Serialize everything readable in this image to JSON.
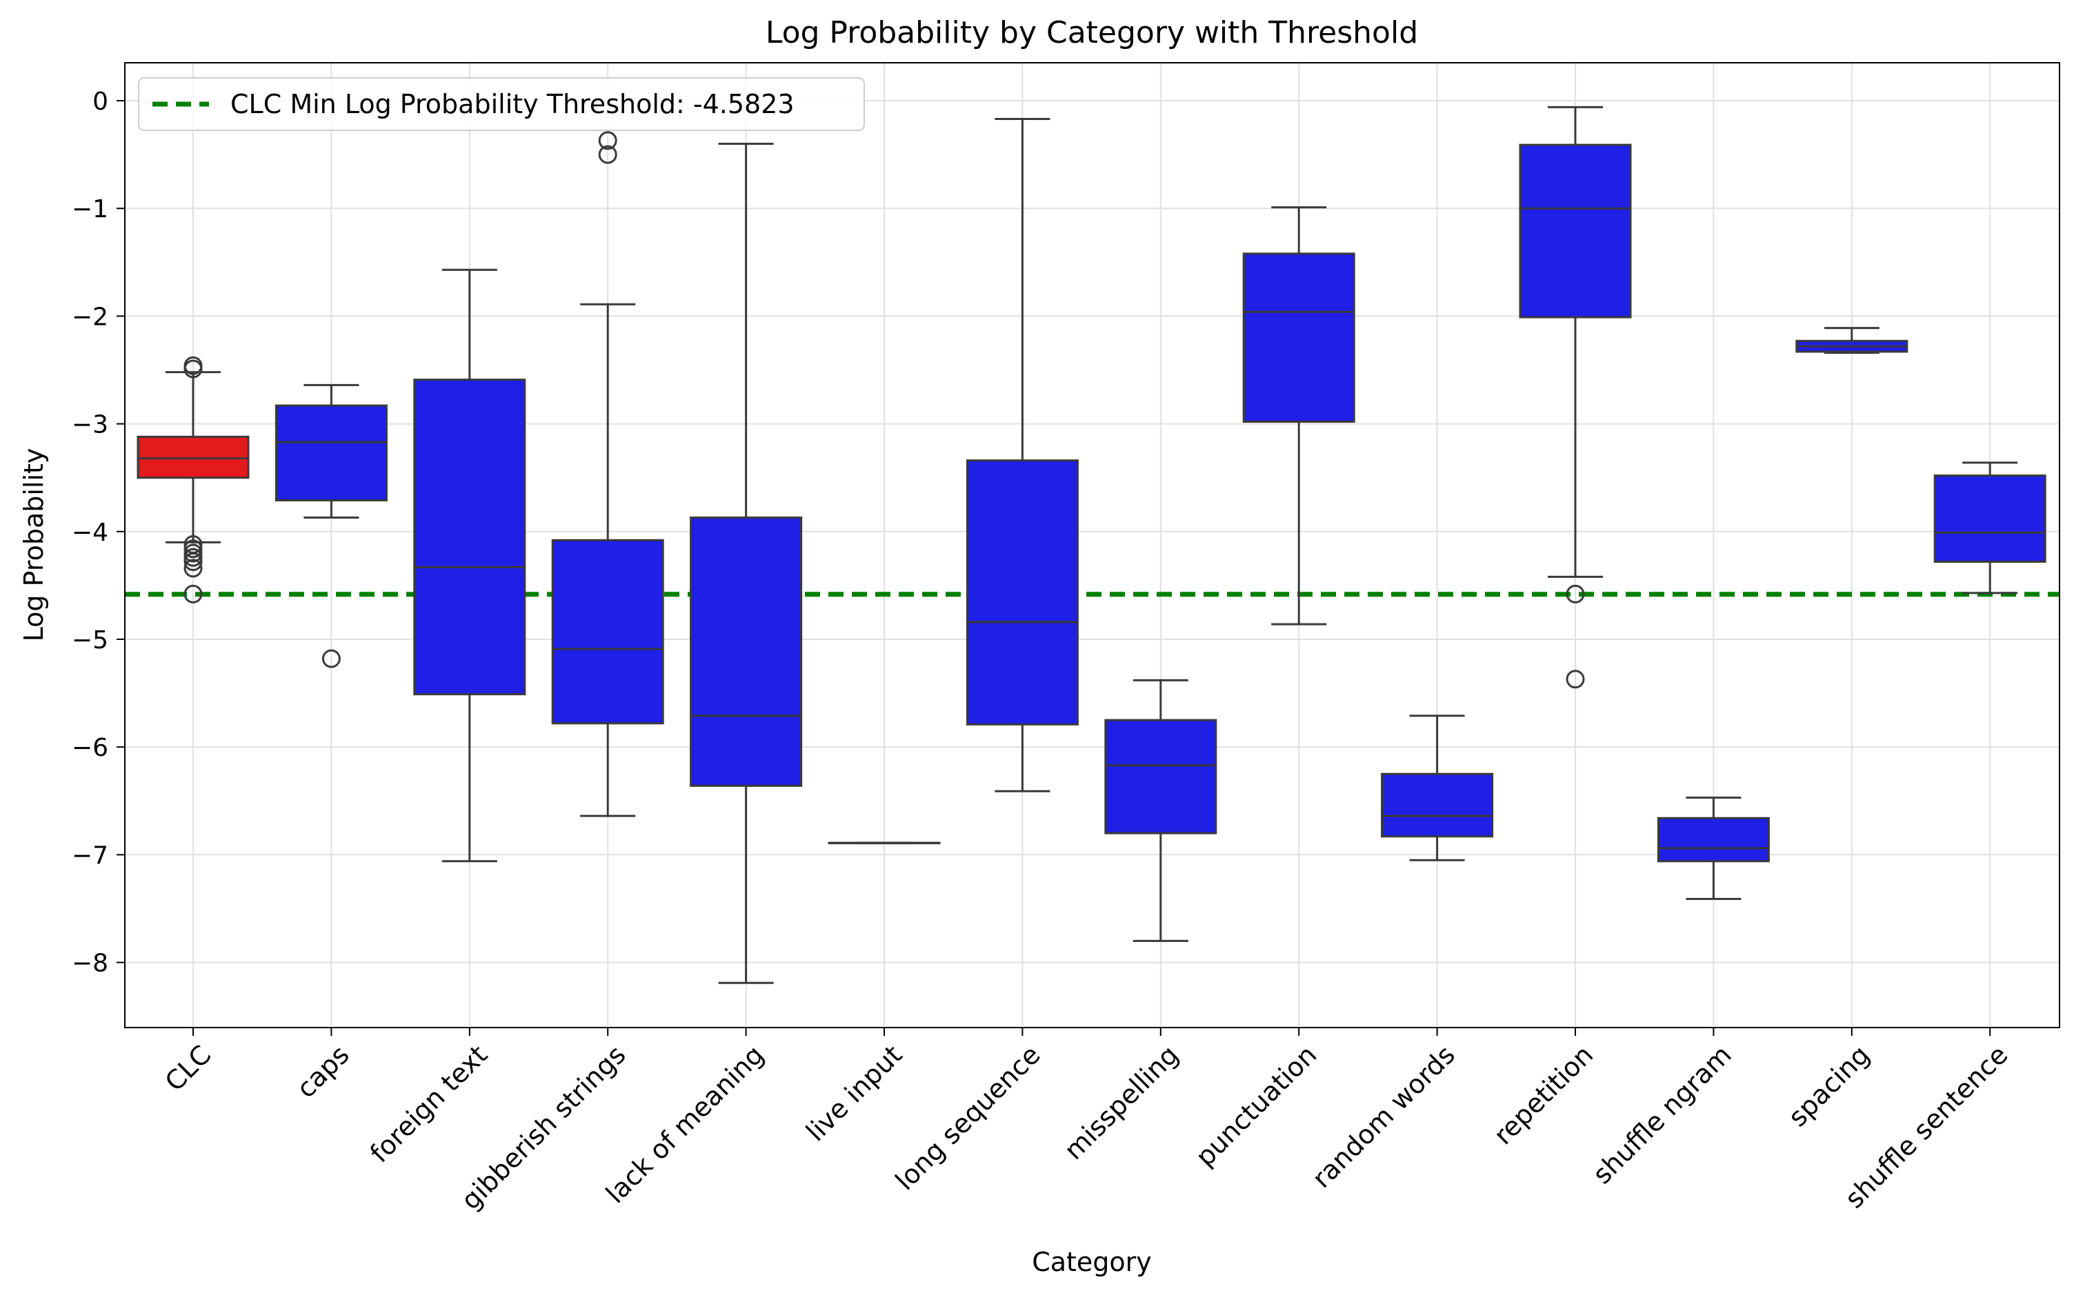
{
  "chart_data": {
    "type": "box",
    "title": "Log Probability by Category with Threshold",
    "xlabel": "Category",
    "ylabel": "Log Probability",
    "ylim": [
      -8.6,
      0.35
    ],
    "yticks": [
      0,
      -1,
      -2,
      -3,
      -4,
      -5,
      -6,
      -7,
      -8
    ],
    "ytick_labels": [
      "0",
      "−1",
      "−2",
      "−3",
      "−4",
      "−5",
      "−6",
      "−7",
      "−8"
    ],
    "grid": true,
    "legend_position": "top-left",
    "threshold": {
      "label": "CLC Min Log Probability Threshold: -4.5823",
      "value": -4.5823,
      "color": "#008000",
      "style": "dashed"
    },
    "colors": {
      "CLC": "#e41a1c",
      "other": "#1f1fe6",
      "whisker": "#3a3a3a",
      "grid": "#e0e0e0"
    },
    "categories": [
      "CLC",
      "caps",
      "foreign text",
      "gibberish strings",
      "lack of meaning",
      "live input",
      "long sequence",
      "misspelling",
      "punctuation",
      "random words",
      "repetition",
      "shuffle ngram",
      "spacing",
      "shuffle sentence"
    ],
    "boxes": [
      {
        "category": "CLC",
        "whislo": -4.1,
        "q1": -3.5,
        "med": -3.32,
        "q3": -3.12,
        "whishi": -2.52,
        "fliers": [
          -2.46,
          -2.49,
          -4.12,
          -4.16,
          -4.2,
          -4.24,
          -4.28,
          -4.34,
          -4.58
        ]
      },
      {
        "category": "caps",
        "whislo": -3.87,
        "q1": -3.71,
        "med": -3.17,
        "q3": -2.83,
        "whishi": -2.64,
        "fliers": [
          -5.18
        ]
      },
      {
        "category": "foreign text",
        "whislo": -7.06,
        "q1": -5.51,
        "med": -4.33,
        "q3": -2.59,
        "whishi": -1.57,
        "fliers": []
      },
      {
        "category": "gibberish strings",
        "whislo": -6.64,
        "q1": -5.78,
        "med": -5.09,
        "q3": -4.08,
        "whishi": -1.89,
        "fliers": [
          -0.37,
          -0.5
        ]
      },
      {
        "category": "lack of meaning",
        "whislo": -8.19,
        "q1": -6.36,
        "med": -5.71,
        "q3": -3.87,
        "whishi": -0.4,
        "fliers": []
      },
      {
        "category": "live input",
        "whislo": -6.89,
        "q1": -6.89,
        "med": -6.89,
        "q3": -6.89,
        "whishi": -6.89,
        "fliers": []
      },
      {
        "category": "long sequence",
        "whislo": -6.41,
        "q1": -5.79,
        "med": -4.84,
        "q3": -3.34,
        "whishi": -0.17,
        "fliers": []
      },
      {
        "category": "misspelling",
        "whislo": -7.8,
        "q1": -6.8,
        "med": -6.17,
        "q3": -5.75,
        "whishi": -5.38,
        "fliers": []
      },
      {
        "category": "punctuation",
        "whislo": -4.86,
        "q1": -2.98,
        "med": -1.96,
        "q3": -1.42,
        "whishi": -0.99,
        "fliers": []
      },
      {
        "category": "random words",
        "whislo": -7.05,
        "q1": -6.83,
        "med": -6.64,
        "q3": -6.25,
        "whishi": -5.71,
        "fliers": []
      },
      {
        "category": "repetition",
        "whislo": -4.42,
        "q1": -2.01,
        "med": -1.0,
        "q3": -0.41,
        "whishi": -0.06,
        "fliers": [
          -4.58,
          -5.37
        ]
      },
      {
        "category": "shuffle ngram",
        "whislo": -7.41,
        "q1": -7.06,
        "med": -6.94,
        "q3": -6.66,
        "whishi": -6.47,
        "fliers": []
      },
      {
        "category": "spacing",
        "whislo": -2.34,
        "q1": -2.33,
        "med": -2.28,
        "q3": -2.23,
        "whishi": -2.11,
        "fliers": []
      },
      {
        "category": "shuffle sentence",
        "whislo": -4.57,
        "q1": -4.28,
        "med": -4.01,
        "q3": -3.48,
        "whishi": -3.36,
        "fliers": []
      }
    ]
  }
}
